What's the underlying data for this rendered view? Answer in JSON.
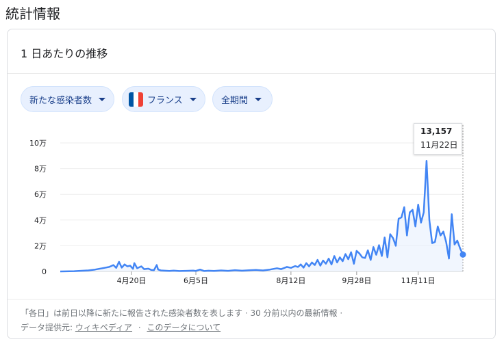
{
  "heading": "統計情報",
  "card": {
    "title": "1 日あたりの推移",
    "filters": {
      "metric": "新たな感染者数",
      "country": "フランス",
      "period": "全期間"
    },
    "tooltip": {
      "value": "13,157",
      "date": "11月22日"
    },
    "footnote": {
      "text": "「各日」は前日以降に新たに報告された感染者数を表します · 30 分前以内の最新情報 ·",
      "source_label": "データ提供元:",
      "source_link": "ウィキペディア",
      "about_link": "このデータについて",
      "separator": "·"
    }
  },
  "colors": {
    "line": "#4285f4",
    "chip_bg": "#e8f0fe",
    "chip_text": "#1a3f8a"
  },
  "chart_data": {
    "type": "line",
    "yticks": [
      "0",
      "2万",
      "4万",
      "6万",
      "8万",
      "10万"
    ],
    "ylim": [
      0,
      100000
    ],
    "xticks": [
      {
        "label": "4月20日",
        "day": 51
      },
      {
        "label": "6月5日",
        "day": 97
      },
      {
        "label": "8月12日",
        "day": 165
      },
      {
        "label": "9月28日",
        "day": 212
      },
      {
        "label": "11月11日",
        "day": 256
      }
    ],
    "x_start": "3月1日",
    "x_end": "11月22日",
    "series": [
      {
        "points": [
          [
            0,
            0
          ],
          [
            10,
            200
          ],
          [
            20,
            800
          ],
          [
            25,
            1500
          ],
          [
            30,
            2500
          ],
          [
            35,
            3500
          ],
          [
            38,
            5000
          ],
          [
            40,
            2800
          ],
          [
            42,
            7500
          ],
          [
            44,
            3000
          ],
          [
            46,
            5500
          ],
          [
            48,
            4000
          ],
          [
            50,
            4500
          ],
          [
            52,
            2000
          ],
          [
            53,
            6500
          ],
          [
            55,
            2500
          ],
          [
            58,
            4000
          ],
          [
            60,
            1800
          ],
          [
            63,
            2200
          ],
          [
            65,
            1200
          ],
          [
            67,
            1000
          ],
          [
            69,
            5000
          ],
          [
            70,
            1500
          ],
          [
            72,
            800
          ],
          [
            75,
            600
          ],
          [
            78,
            400
          ],
          [
            81,
            700
          ],
          [
            85,
            300
          ],
          [
            90,
            500
          ],
          [
            95,
            700
          ],
          [
            97,
            400
          ],
          [
            100,
            1500
          ],
          [
            103,
            300
          ],
          [
            106,
            600
          ],
          [
            110,
            400
          ],
          [
            115,
            800
          ],
          [
            120,
            500
          ],
          [
            125,
            1000
          ],
          [
            130,
            600
          ],
          [
            135,
            900
          ],
          [
            140,
            1200
          ],
          [
            145,
            800
          ],
          [
            150,
            1500
          ],
          [
            155,
            2500
          ],
          [
            158,
            1800
          ],
          [
            162,
            3500
          ],
          [
            165,
            2800
          ],
          [
            168,
            4200
          ],
          [
            170,
            3500
          ],
          [
            172,
            5500
          ],
          [
            174,
            3000
          ],
          [
            176,
            6500
          ],
          [
            178,
            4000
          ],
          [
            180,
            7000
          ],
          [
            182,
            5000
          ],
          [
            184,
            9000
          ],
          [
            186,
            4500
          ],
          [
            188,
            8500
          ],
          [
            190,
            6000
          ],
          [
            192,
            10000
          ],
          [
            194,
            5500
          ],
          [
            196,
            12000
          ],
          [
            198,
            7000
          ],
          [
            200,
            11000
          ],
          [
            202,
            8000
          ],
          [
            204,
            13500
          ],
          [
            206,
            9500
          ],
          [
            208,
            15000
          ],
          [
            210,
            6000
          ],
          [
            212,
            16000
          ],
          [
            214,
            14000
          ],
          [
            216,
            11000
          ],
          [
            218,
            10500
          ],
          [
            220,
            16500
          ],
          [
            222,
            9000
          ],
          [
            224,
            19000
          ],
          [
            226,
            13000
          ],
          [
            228,
            20500
          ],
          [
            230,
            12000
          ],
          [
            232,
            26500
          ],
          [
            234,
            11000
          ],
          [
            236,
            29000
          ],
          [
            238,
            26000
          ],
          [
            240,
            20000
          ],
          [
            242,
            41000
          ],
          [
            244,
            42000
          ],
          [
            246,
            50000
          ],
          [
            248,
            28000
          ],
          [
            250,
            46000
          ],
          [
            252,
            48000
          ],
          [
            254,
            35000
          ],
          [
            256,
            52000
          ],
          [
            258,
            38000
          ],
          [
            260,
            46000
          ],
          [
            262,
            86000
          ],
          [
            264,
            40000
          ],
          [
            266,
            22000
          ],
          [
            268,
            23000
          ],
          [
            270,
            35000
          ],
          [
            272,
            28000
          ],
          [
            274,
            31000
          ],
          [
            276,
            23000
          ],
          [
            278,
            10000
          ],
          [
            280,
            44500
          ],
          [
            282,
            21000
          ],
          [
            284,
            24000
          ],
          [
            286,
            18000
          ],
          [
            288,
            13157
          ]
        ]
      }
    ]
  }
}
